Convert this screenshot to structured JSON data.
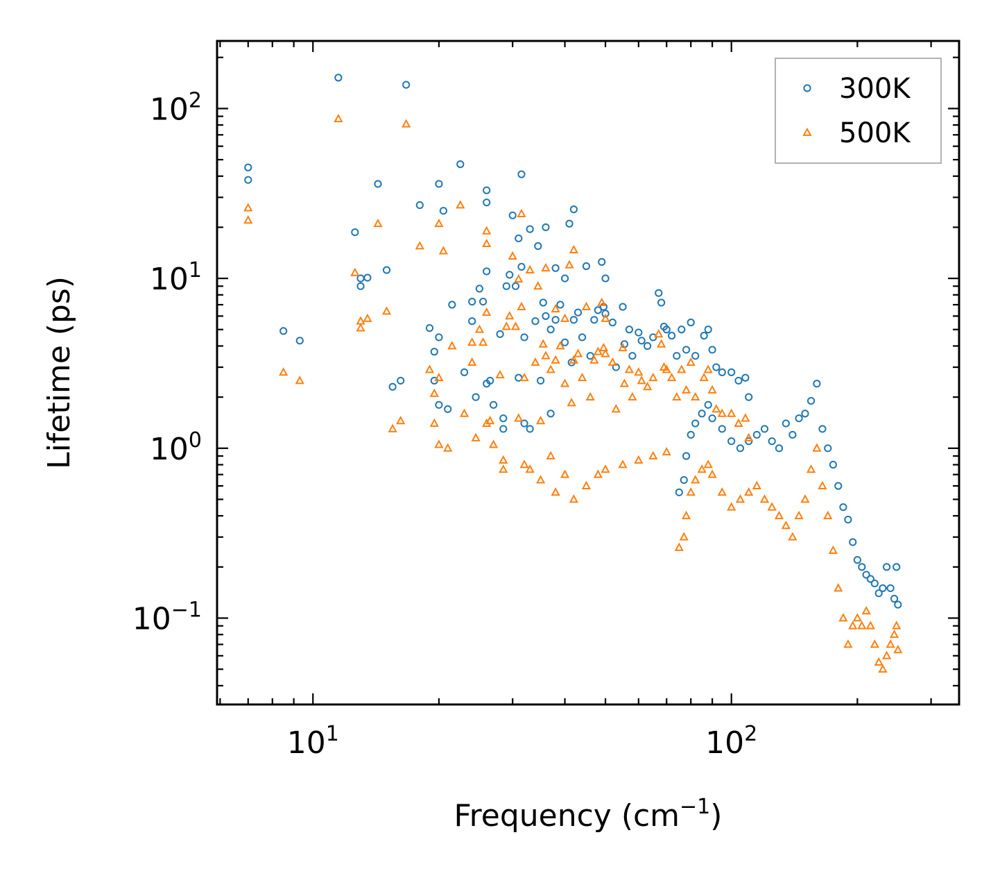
{
  "chart_data": {
    "type": "scatter",
    "title": "",
    "xlabel": "Frequency (cm",
    "xlabel_superscript": "−1",
    "xlabel_suffix": ")",
    "ylabel": "Lifetime (ps)",
    "xscale": "log",
    "yscale": "log",
    "xlim": [
      5.9,
      350
    ],
    "ylim": [
      0.031,
      250
    ],
    "x_ticks": [
      {
        "value": 10,
        "base": "10",
        "exp": "1"
      },
      {
        "value": 100,
        "base": "10",
        "exp": "2"
      }
    ],
    "y_ticks": [
      {
        "value": 0.1,
        "base": "10",
        "exp": "−1"
      },
      {
        "value": 1,
        "base": "10",
        "exp": "0"
      },
      {
        "value": 10,
        "base": "10",
        "exp": "1"
      },
      {
        "value": 100,
        "base": "10",
        "exp": "2"
      }
    ],
    "legend": {
      "position": "top-right"
    },
    "series": [
      {
        "name": "300K",
        "marker": "circle",
        "color": "#1f77b4",
        "points": [
          [
            7.0,
            45
          ],
          [
            7.0,
            38
          ],
          [
            8.5,
            4.9
          ],
          [
            9.3,
            4.3
          ],
          [
            11.5,
            152
          ],
          [
            12.6,
            18.7
          ],
          [
            13.0,
            9.0
          ],
          [
            13.0,
            10.0
          ],
          [
            13.5,
            10.1
          ],
          [
            14.3,
            36
          ],
          [
            15.0,
            11.2
          ],
          [
            15.5,
            2.3
          ],
          [
            16.2,
            2.5
          ],
          [
            16.7,
            138
          ],
          [
            18.0,
            27
          ],
          [
            19.0,
            5.1
          ],
          [
            19.5,
            3.7
          ],
          [
            19.5,
            2.5
          ],
          [
            20.0,
            36
          ],
          [
            20.0,
            4.5
          ],
          [
            20.0,
            1.8
          ],
          [
            20.5,
            25
          ],
          [
            21.0,
            1.7
          ],
          [
            21.5,
            7.0
          ],
          [
            22.5,
            47
          ],
          [
            23.0,
            2.8
          ],
          [
            24.0,
            5.6
          ],
          [
            24.0,
            7.3
          ],
          [
            24.5,
            2.0
          ],
          [
            25.0,
            8.7
          ],
          [
            25.5,
            7.3
          ],
          [
            26.0,
            33
          ],
          [
            26.0,
            28
          ],
          [
            26.0,
            11.0
          ],
          [
            26.0,
            2.4
          ],
          [
            26.5,
            2.5
          ],
          [
            27.0,
            1.8
          ],
          [
            28.0,
            4.7
          ],
          [
            28.5,
            1.5
          ],
          [
            28.5,
            1.3
          ],
          [
            29.0,
            9.0
          ],
          [
            29.5,
            10.5
          ],
          [
            30.0,
            23.5
          ],
          [
            30.5,
            9.0
          ],
          [
            31.0,
            17.2
          ],
          [
            31.0,
            2.6
          ],
          [
            31.5,
            11.7
          ],
          [
            31.5,
            41
          ],
          [
            32.0,
            4.5
          ],
          [
            32.0,
            1.4
          ],
          [
            33.0,
            19.5
          ],
          [
            33.0,
            1.3
          ],
          [
            34.0,
            5.6
          ],
          [
            34.5,
            15.5
          ],
          [
            35.0,
            2.5
          ],
          [
            35.5,
            7.2
          ],
          [
            36.0,
            6.0
          ],
          [
            36.0,
            20
          ],
          [
            37.0,
            5.0
          ],
          [
            37.0,
            1.6
          ],
          [
            38.0,
            11.5
          ],
          [
            38.0,
            5.7
          ],
          [
            39.0,
            7.0
          ],
          [
            40.0,
            10.0
          ],
          [
            40.0,
            4.2
          ],
          [
            41.0,
            21.0
          ],
          [
            41.5,
            3.2
          ],
          [
            42.0,
            25.5
          ],
          [
            42.0,
            5.7
          ],
          [
            43.0,
            6.3
          ],
          [
            44.0,
            4.5
          ],
          [
            45.0,
            11.8
          ],
          [
            46.0,
            3.5
          ],
          [
            47.0,
            5.7
          ],
          [
            48.0,
            6.5
          ],
          [
            49.0,
            12.5
          ],
          [
            49.5,
            6.8
          ],
          [
            50.0,
            10.0
          ],
          [
            50.0,
            6.2
          ],
          [
            52.0,
            5.5
          ],
          [
            53.0,
            3.0
          ],
          [
            55.0,
            6.8
          ],
          [
            55.5,
            4.1
          ],
          [
            57.0,
            5.0
          ],
          [
            58.0,
            3.5
          ],
          [
            60.0,
            4.8
          ],
          [
            61.0,
            4.3
          ],
          [
            63.0,
            4.0
          ],
          [
            65.0,
            4.5
          ],
          [
            67.0,
            8.2
          ],
          [
            68.0,
            7.2
          ],
          [
            69.0,
            5.2
          ],
          [
            70.0,
            5.0
          ],
          [
            72.0,
            4.6
          ],
          [
            74.0,
            3.5
          ],
          [
            76.0,
            5.0
          ],
          [
            78.0,
            3.8
          ],
          [
            80.0,
            5.5
          ],
          [
            82.0,
            3.5
          ],
          [
            86.0,
            4.6
          ],
          [
            88.0,
            5.0
          ],
          [
            90.0,
            3.8
          ],
          [
            92.0,
            3.0
          ],
          [
            95.0,
            2.8
          ],
          [
            100.0,
            2.8
          ],
          [
            104.0,
            2.5
          ],
          [
            108.0,
            2.6
          ],
          [
            110.0,
            2.0
          ],
          [
            75.0,
            0.55
          ],
          [
            77.0,
            0.65
          ],
          [
            78.0,
            0.9
          ],
          [
            80.0,
            1.2
          ],
          [
            82.0,
            1.4
          ],
          [
            85.0,
            1.6
          ],
          [
            88.0,
            1.8
          ],
          [
            90.0,
            1.5
          ],
          [
            95.0,
            1.3
          ],
          [
            100.0,
            1.1
          ],
          [
            105.0,
            1.0
          ],
          [
            110.0,
            1.1
          ],
          [
            115.0,
            1.2
          ],
          [
            120.0,
            1.3
          ],
          [
            125.0,
            1.1
          ],
          [
            130.0,
            1.0
          ],
          [
            135.0,
            1.4
          ],
          [
            140.0,
            1.2
          ],
          [
            145.0,
            1.5
          ],
          [
            150.0,
            1.6
          ],
          [
            155.0,
            1.9
          ],
          [
            160.0,
            2.4
          ],
          [
            165.0,
            1.3
          ],
          [
            170.0,
            1.0
          ],
          [
            175.0,
            0.8
          ],
          [
            180.0,
            0.6
          ],
          [
            185.0,
            0.45
          ],
          [
            190.0,
            0.38
          ],
          [
            195.0,
            0.28
          ],
          [
            200.0,
            0.22
          ],
          [
            205.0,
            0.2
          ],
          [
            210.0,
            0.18
          ],
          [
            215.0,
            0.17
          ],
          [
            220.0,
            0.16
          ],
          [
            225.0,
            0.14
          ],
          [
            230.0,
            0.15
          ],
          [
            235.0,
            0.2
          ],
          [
            240.0,
            0.15
          ],
          [
            245.0,
            0.13
          ],
          [
            248.0,
            0.2
          ],
          [
            250.0,
            0.12
          ]
        ]
      },
      {
        "name": "500K",
        "marker": "triangle",
        "color": "#ff7f0e",
        "points": [
          [
            7.0,
            26
          ],
          [
            7.0,
            22
          ],
          [
            8.5,
            2.8
          ],
          [
            9.3,
            2.5
          ],
          [
            11.5,
            87
          ],
          [
            12.6,
            10.8
          ],
          [
            13.0,
            5.1
          ],
          [
            13.0,
            5.6
          ],
          [
            13.5,
            5.8
          ],
          [
            14.3,
            21
          ],
          [
            15.0,
            6.4
          ],
          [
            15.5,
            1.3
          ],
          [
            16.2,
            1.45
          ],
          [
            16.7,
            81
          ],
          [
            18.0,
            15.5
          ],
          [
            19.0,
            2.9
          ],
          [
            19.5,
            2.1
          ],
          [
            19.5,
            1.4
          ],
          [
            20.0,
            21
          ],
          [
            20.0,
            2.6
          ],
          [
            20.0,
            1.05
          ],
          [
            20.5,
            14.5
          ],
          [
            21.0,
            1.0
          ],
          [
            21.5,
            4.0
          ],
          [
            22.5,
            27
          ],
          [
            23.0,
            1.6
          ],
          [
            24.0,
            3.2
          ],
          [
            24.0,
            4.2
          ],
          [
            24.5,
            1.15
          ],
          [
            25.0,
            5.0
          ],
          [
            25.5,
            4.2
          ],
          [
            26.0,
            19
          ],
          [
            26.0,
            16
          ],
          [
            26.0,
            6.3
          ],
          [
            26.0,
            1.4
          ],
          [
            26.5,
            1.45
          ],
          [
            27.0,
            1.05
          ],
          [
            28.0,
            2.7
          ],
          [
            28.5,
            0.85
          ],
          [
            28.5,
            0.75
          ],
          [
            29.0,
            5.2
          ],
          [
            29.5,
            6.0
          ],
          [
            30.0,
            13.5
          ],
          [
            30.5,
            5.2
          ],
          [
            31.0,
            9.9
          ],
          [
            31.0,
            1.5
          ],
          [
            31.5,
            6.8
          ],
          [
            31.5,
            24
          ],
          [
            32.0,
            2.6
          ],
          [
            32.0,
            0.8
          ],
          [
            33.0,
            11.2
          ],
          [
            33.0,
            0.75
          ],
          [
            34.0,
            3.2
          ],
          [
            34.5,
            9.0
          ],
          [
            35.0,
            1.45
          ],
          [
            35.5,
            4.1
          ],
          [
            36.0,
            3.5
          ],
          [
            36.0,
            11.5
          ],
          [
            37.0,
            2.9
          ],
          [
            37.0,
            0.9
          ],
          [
            38.0,
            6.6
          ],
          [
            38.0,
            3.3
          ],
          [
            39.0,
            4.0
          ],
          [
            40.0,
            5.8
          ],
          [
            40.0,
            2.4
          ],
          [
            41.0,
            12.0
          ],
          [
            41.5,
            1.85
          ],
          [
            42.0,
            14.7
          ],
          [
            42.0,
            3.3
          ],
          [
            43.0,
            3.6
          ],
          [
            44.0,
            2.6
          ],
          [
            45.0,
            6.8
          ],
          [
            46.0,
            2.0
          ],
          [
            47.0,
            3.3
          ],
          [
            48.0,
            3.7
          ],
          [
            49.0,
            7.2
          ],
          [
            49.5,
            3.9
          ],
          [
            50.0,
            5.8
          ],
          [
            50.0,
            3.6
          ],
          [
            52.0,
            3.2
          ],
          [
            53.0,
            1.7
          ],
          [
            55.0,
            3.9
          ],
          [
            55.5,
            2.4
          ],
          [
            57.0,
            2.9
          ],
          [
            58.0,
            2.0
          ],
          [
            60.0,
            2.8
          ],
          [
            61.0,
            2.5
          ],
          [
            63.0,
            2.3
          ],
          [
            65.0,
            2.6
          ],
          [
            67.0,
            4.7
          ],
          [
            68.0,
            4.1
          ],
          [
            69.0,
            3.0
          ],
          [
            70.0,
            2.9
          ],
          [
            72.0,
            2.6
          ],
          [
            74.0,
            2.0
          ],
          [
            76.0,
            2.9
          ],
          [
            78.0,
            2.2
          ],
          [
            80.0,
            3.2
          ],
          [
            82.0,
            2.0
          ],
          [
            86.0,
            2.6
          ],
          [
            88.0,
            2.9
          ],
          [
            90.0,
            2.2
          ],
          [
            92.0,
            1.7
          ],
          [
            95.0,
            1.6
          ],
          [
            100.0,
            1.6
          ],
          [
            104.0,
            1.4
          ],
          [
            108.0,
            1.5
          ],
          [
            110.0,
            1.15
          ],
          [
            35.0,
            0.65
          ],
          [
            38.0,
            0.55
          ],
          [
            40.0,
            0.7
          ],
          [
            42.0,
            0.5
          ],
          [
            45.0,
            0.6
          ],
          [
            48.0,
            0.7
          ],
          [
            50.0,
            0.75
          ],
          [
            55.0,
            0.8
          ],
          [
            60.0,
            0.85
          ],
          [
            65.0,
            0.9
          ],
          [
            70.0,
            0.95
          ],
          [
            75.0,
            0.26
          ],
          [
            77.0,
            0.3
          ],
          [
            78.0,
            0.4
          ],
          [
            80.0,
            0.55
          ],
          [
            82.0,
            0.65
          ],
          [
            85.0,
            0.75
          ],
          [
            88.0,
            0.8
          ],
          [
            90.0,
            0.7
          ],
          [
            95.0,
            0.55
          ],
          [
            100.0,
            0.45
          ],
          [
            105.0,
            0.5
          ],
          [
            110.0,
            0.55
          ],
          [
            115.0,
            0.6
          ],
          [
            120.0,
            0.5
          ],
          [
            125.0,
            0.45
          ],
          [
            130.0,
            0.4
          ],
          [
            135.0,
            0.35
          ],
          [
            140.0,
            0.3
          ],
          [
            145.0,
            0.4
          ],
          [
            150.0,
            0.5
          ],
          [
            155.0,
            0.75
          ],
          [
            160.0,
            1.0
          ],
          [
            165.0,
            0.6
          ],
          [
            170.0,
            0.4
          ],
          [
            175.0,
            0.25
          ],
          [
            180.0,
            0.15
          ],
          [
            185.0,
            0.1
          ],
          [
            190.0,
            0.07
          ],
          [
            195.0,
            0.09
          ],
          [
            200.0,
            0.1
          ],
          [
            205.0,
            0.09
          ],
          [
            210.0,
            0.11
          ],
          [
            215.0,
            0.09
          ],
          [
            220.0,
            0.07
          ],
          [
            225.0,
            0.055
          ],
          [
            230.0,
            0.05
          ],
          [
            235.0,
            0.06
          ],
          [
            240.0,
            0.07
          ],
          [
            245.0,
            0.08
          ],
          [
            248.0,
            0.09
          ],
          [
            250.0,
            0.065
          ]
        ]
      }
    ]
  }
}
